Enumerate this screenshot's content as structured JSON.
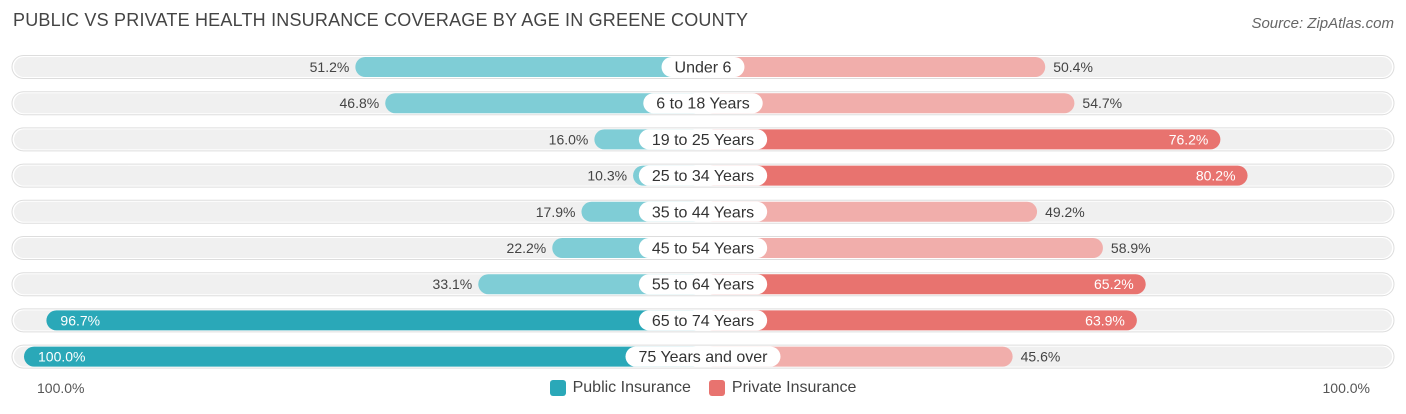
{
  "title": "PUBLIC VS PRIVATE HEALTH INSURANCE COVERAGE BY AGE IN GREENE COUNTY",
  "source": "Source: ZipAtlas.com",
  "colors": {
    "public_dark": "#2aa8b8",
    "public_light": "#7fcdd6",
    "private_dark": "#e8736f",
    "private_light": "#f1aeab",
    "row_bg": "#f0f0f0"
  },
  "axis": {
    "left_label": "100.0%",
    "right_label": "100.0%"
  },
  "legend": {
    "public_label": "Public Insurance",
    "private_label": "Private Insurance"
  },
  "chart_data": {
    "type": "bar",
    "orientation": "horizontal-diverging",
    "categories": [
      "Under 6",
      "6 to 18 Years",
      "19 to 25 Years",
      "25 to 34 Years",
      "35 to 44 Years",
      "45 to 54 Years",
      "55 to 64 Years",
      "65 to 74 Years",
      "75 Years and over"
    ],
    "series": [
      {
        "name": "Public Insurance",
        "values": [
          51.2,
          46.8,
          16.0,
          10.3,
          17.9,
          22.2,
          33.1,
          96.7,
          100.0
        ],
        "labels": [
          "51.2%",
          "46.8%",
          "16.0%",
          "10.3%",
          "17.9%",
          "22.2%",
          "33.1%",
          "96.7%",
          "100.0%"
        ]
      },
      {
        "name": "Private Insurance",
        "values": [
          50.4,
          54.7,
          76.2,
          80.2,
          49.2,
          58.9,
          65.2,
          63.9,
          45.6
        ],
        "labels": [
          "50.4%",
          "54.7%",
          "76.2%",
          "80.2%",
          "49.2%",
          "58.9%",
          "65.2%",
          "63.9%",
          "45.6%"
        ]
      }
    ],
    "xlim": [
      0,
      100
    ],
    "legend_position": "bottom-center"
  }
}
